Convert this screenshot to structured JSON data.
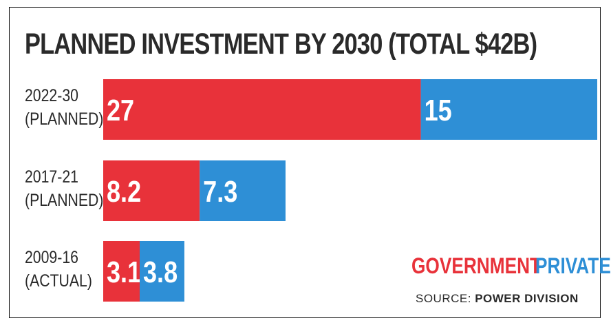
{
  "title": "PLANNED INVESTMENT BY 2030 (TOTAL $42B)",
  "legend": {
    "government": "GOVERNMENT",
    "private": "PRIVATE"
  },
  "source": {
    "prefix": "SOURCE: ",
    "name": "POWER DIVISION"
  },
  "colors": {
    "government": "#e8323a",
    "private": "#2e8fd6"
  },
  "chart_data": {
    "type": "bar",
    "orientation": "horizontal",
    "stacked": true,
    "title": "PLANNED INVESTMENT BY 2030 (TOTAL $42B)",
    "categories": [
      {
        "line1": "2022-30",
        "line2": "(PLANNED)"
      },
      {
        "line1": "2017-21",
        "line2": "(PLANNED)"
      },
      {
        "line1": "2009-16",
        "line2": "(ACTUAL)"
      }
    ],
    "series": [
      {
        "name": "GOVERNMENT",
        "values": [
          27,
          8.2,
          3.1
        ],
        "labels": [
          "27",
          "8.2",
          "3.1"
        ]
      },
      {
        "name": "PRIVATE",
        "values": [
          15,
          7.3,
          3.8
        ],
        "labels": [
          "15",
          "7.3",
          "3.8"
        ]
      }
    ],
    "legend_position": "bottom-right",
    "grid": false
  }
}
